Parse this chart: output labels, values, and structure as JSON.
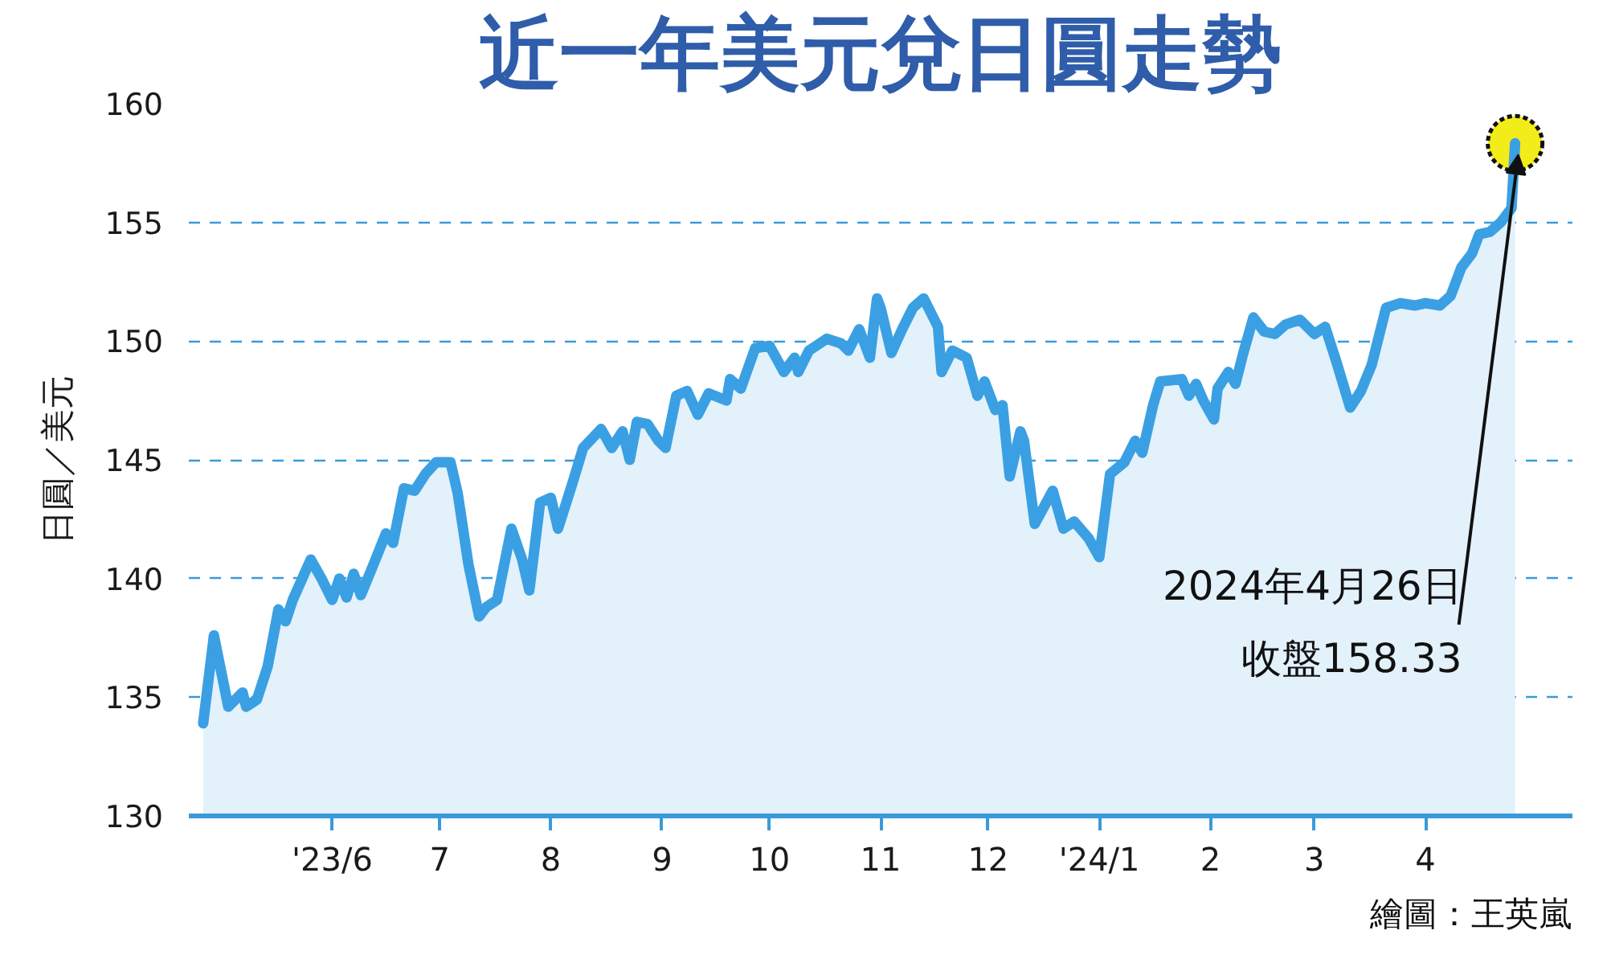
{
  "chart_data": {
    "type": "area",
    "title": "近一年美元兌日圓走勢",
    "ylabel": "日圓／美元",
    "x": [
      "2023-04-26",
      "2023-04-29",
      "2023-05-03",
      "2023-05-07",
      "2023-05-08",
      "2023-05-11",
      "2023-05-14",
      "2023-05-17",
      "2023-05-19",
      "2023-05-21",
      "2023-05-26",
      "2023-05-29",
      "2023-06-01",
      "2023-06-03",
      "2023-06-05",
      "2023-06-07",
      "2023-06-09",
      "2023-06-12",
      "2023-06-16",
      "2023-06-18",
      "2023-06-21",
      "2023-06-24",
      "2023-06-27",
      "2023-06-30",
      "2023-07-04",
      "2023-07-06",
      "2023-07-09",
      "2023-07-12",
      "2023-07-14",
      "2023-07-17",
      "2023-07-21",
      "2023-07-24",
      "2023-07-26",
      "2023-07-29",
      "2023-08-01",
      "2023-08-03",
      "2023-08-07",
      "2023-08-10",
      "2023-08-15",
      "2023-08-18",
      "2023-08-21",
      "2023-08-23",
      "2023-08-25",
      "2023-08-28",
      "2023-08-31",
      "2023-09-02",
      "2023-09-05",
      "2023-09-08",
      "2023-09-11",
      "2023-09-14",
      "2023-09-19",
      "2023-09-20",
      "2023-09-23",
      "2023-09-27",
      "2023-10-01",
      "2023-10-05",
      "2023-10-08",
      "2023-10-09",
      "2023-10-12",
      "2023-10-17",
      "2023-10-21",
      "2023-10-23",
      "2023-10-26",
      "2023-10-29",
      "2023-10-31",
      "2023-11-01",
      "2023-11-04",
      "2023-11-07",
      "2023-11-10",
      "2023-11-13",
      "2023-11-15",
      "2023-11-17",
      "2023-11-18",
      "2023-11-21",
      "2023-11-25",
      "2023-11-28",
      "2023-11-30",
      "2023-12-03",
      "2023-12-05",
      "2023-12-07",
      "2023-12-10",
      "2023-12-11",
      "2023-12-14",
      "2023-12-19",
      "2023-12-22",
      "2023-12-25",
      "2023-12-29",
      "2024-01-01",
      "2024-01-04",
      "2024-01-08",
      "2024-01-11",
      "2024-01-13",
      "2024-01-16",
      "2024-01-18",
      "2024-01-24",
      "2024-01-26",
      "2024-01-28",
      "2024-01-30",
      "2024-02-02",
      "2024-02-03",
      "2024-02-06",
      "2024-02-08",
      "2024-02-10",
      "2024-02-13",
      "2024-02-16",
      "2024-02-19",
      "2024-02-22",
      "2024-02-26",
      "2024-03-01",
      "2024-03-04",
      "2024-03-07",
      "2024-03-11",
      "2024-03-14",
      "2024-03-17",
      "2024-03-21",
      "2024-03-25",
      "2024-03-29",
      "2024-04-01",
      "2024-04-05",
      "2024-04-08",
      "2024-04-11",
      "2024-04-14",
      "2024-04-16",
      "2024-04-19",
      "2024-04-22",
      "2024-04-25",
      "2024-04-26"
    ],
    "series": [
      {
        "color": "#3aa0e3",
        "values": [
          133.9,
          137.6,
          134.6,
          135.2,
          134.6,
          134.9,
          136.3,
          138.7,
          138.2,
          139.1,
          140.8,
          140.0,
          139.1,
          140.0,
          139.2,
          140.2,
          139.3,
          140.4,
          141.9,
          141.5,
          143.8,
          143.7,
          144.4,
          144.9,
          144.9,
          143.6,
          140.6,
          138.4,
          138.8,
          139.1,
          142.1,
          140.8,
          139.5,
          143.2,
          143.4,
          142.1,
          144.0,
          145.5,
          146.3,
          145.5,
          146.2,
          145.0,
          146.6,
          146.5,
          145.8,
          145.5,
          147.7,
          147.9,
          146.9,
          147.8,
          147.5,
          148.4,
          148.0,
          149.7,
          149.8,
          148.7,
          149.3,
          148.7,
          149.6,
          150.1,
          149.9,
          149.6,
          150.5,
          149.3,
          151.8,
          151.4,
          149.5,
          150.5,
          151.4,
          151.8,
          151.2,
          150.6,
          148.7,
          149.6,
          149.3,
          147.7,
          148.3,
          147.1,
          147.3,
          144.3,
          146.2,
          145.8,
          142.3,
          143.7,
          142.1,
          142.4,
          141.7,
          140.9,
          144.4,
          144.9,
          145.8,
          145.3,
          147.3,
          148.3,
          148.4,
          147.7,
          148.2,
          147.5,
          146.7,
          148.0,
          148.7,
          148.2,
          149.4,
          151.0,
          150.4,
          150.3,
          150.7,
          150.9,
          150.3,
          150.6,
          149.2,
          147.2,
          147.9,
          149.0,
          151.4,
          151.6,
          151.5,
          151.6,
          151.5,
          151.9,
          153.1,
          153.7,
          154.5,
          154.6,
          155.0,
          155.6,
          158.33
        ]
      }
    ],
    "xlim": [
      "2023-04-22",
      "2024-05-12"
    ],
    "ylim": [
      130,
      160
    ],
    "xticks": [
      {
        "value": "2023-06-01",
        "label": "'23/6"
      },
      {
        "value": "2023-07-01",
        "label": "7"
      },
      {
        "value": "2023-08-01",
        "label": "8"
      },
      {
        "value": "2023-09-01",
        "label": "9"
      },
      {
        "value": "2023-10-01",
        "label": "10"
      },
      {
        "value": "2023-11-01",
        "label": "11"
      },
      {
        "value": "2023-12-01",
        "label": "12"
      },
      {
        "value": "2024-01-01",
        "label": "'24/1"
      },
      {
        "value": "2024-02-01",
        "label": "2"
      },
      {
        "value": "2024-03-01",
        "label": "3"
      },
      {
        "value": "2024-04-01",
        "label": "4"
      }
    ],
    "yticks": [
      130,
      135,
      140,
      145,
      150,
      155,
      160
    ],
    "grid": "y",
    "annotations": [
      {
        "text": "2024年4月26日收盤158.33",
        "x": "2024-04-26",
        "y": 158.33
      },
      "繪圖：王英嵐"
    ]
  }
}
